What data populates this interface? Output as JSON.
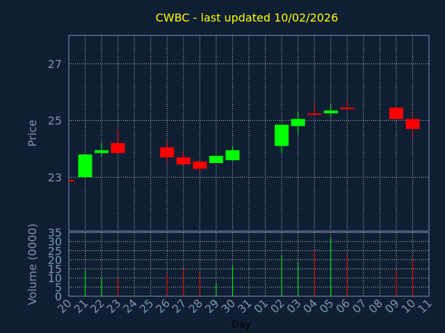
{
  "chart_data": {
    "type": "candlestick",
    "title": "CWBC - last updated 10/02/2026",
    "xlabel": "Day",
    "colors": {
      "background": "#0f1f33",
      "axis": "#7f95b3",
      "grid": "#c8c8c8",
      "title": "#ffff00",
      "label": "#7f95b3",
      "up": "#00ff00",
      "down": "#ff0000"
    },
    "x_ticks": [
      "20",
      "21",
      "22",
      "23",
      "24",
      "25",
      "26",
      "27",
      "28",
      "29",
      "30",
      "31",
      "01",
      "02",
      "03",
      "04",
      "05",
      "06",
      "07",
      "08",
      "09",
      "10",
      "11"
    ],
    "price_panel": {
      "ylabel": "Price",
      "ylim": [
        21.1,
        28.0
      ],
      "y_ticks": [
        23,
        25,
        27
      ]
    },
    "volume_panel": {
      "ylabel": "Volume (0000)",
      "ylim": [
        0,
        35
      ],
      "y_ticks": [
        0,
        5,
        10,
        15,
        20,
        25,
        30,
        35
      ]
    },
    "candles": [
      {
        "day": "20",
        "open": 22.9,
        "close": 22.85,
        "high": 22.9,
        "low": 22.85,
        "volume": 0
      },
      {
        "day": "21",
        "open": 23.0,
        "close": 23.8,
        "high": 23.8,
        "low": 23.0,
        "volume": 14
      },
      {
        "day": "22",
        "open": 23.85,
        "close": 23.95,
        "high": 24.2,
        "low": 23.75,
        "volume": 10
      },
      {
        "day": "23",
        "open": 24.2,
        "close": 23.85,
        "high": 24.7,
        "low": 23.85,
        "volume": 10
      },
      {
        "day": "26",
        "open": 24.05,
        "close": 23.7,
        "high": 24.3,
        "low": 23.5,
        "volume": 12
      },
      {
        "day": "27",
        "open": 23.7,
        "close": 23.45,
        "high": 23.9,
        "low": 23.45,
        "volume": 15
      },
      {
        "day": "28",
        "open": 23.55,
        "close": 23.3,
        "high": 23.55,
        "low": 23.15,
        "volume": 13
      },
      {
        "day": "29",
        "open": 23.5,
        "close": 23.75,
        "high": 23.75,
        "low": 23.5,
        "volume": 7
      },
      {
        "day": "30",
        "open": 23.6,
        "close": 23.95,
        "high": 24.1,
        "low": 23.6,
        "volume": 17
      },
      {
        "day": "02",
        "open": 24.1,
        "close": 24.85,
        "high": 24.85,
        "low": 23.85,
        "volume": 22
      },
      {
        "day": "03",
        "open": 24.8,
        "close": 25.05,
        "high": 25.3,
        "low": 24.5,
        "volume": 19
      },
      {
        "day": "04",
        "open": 25.25,
        "close": 25.22,
        "high": 25.6,
        "low": 25.22,
        "volume": 25
      },
      {
        "day": "05",
        "open": 25.25,
        "close": 25.35,
        "high": 25.6,
        "low": 25.1,
        "volume": 32
      },
      {
        "day": "06",
        "open": 25.45,
        "close": 25.4,
        "high": 25.7,
        "low": 25.4,
        "volume": 23
      },
      {
        "day": "09",
        "open": 25.45,
        "close": 25.05,
        "high": 25.5,
        "low": 25.05,
        "volume": 14
      },
      {
        "day": "10",
        "open": 25.05,
        "close": 24.7,
        "high": 25.2,
        "low": 24.4,
        "volume": 20
      }
    ]
  }
}
